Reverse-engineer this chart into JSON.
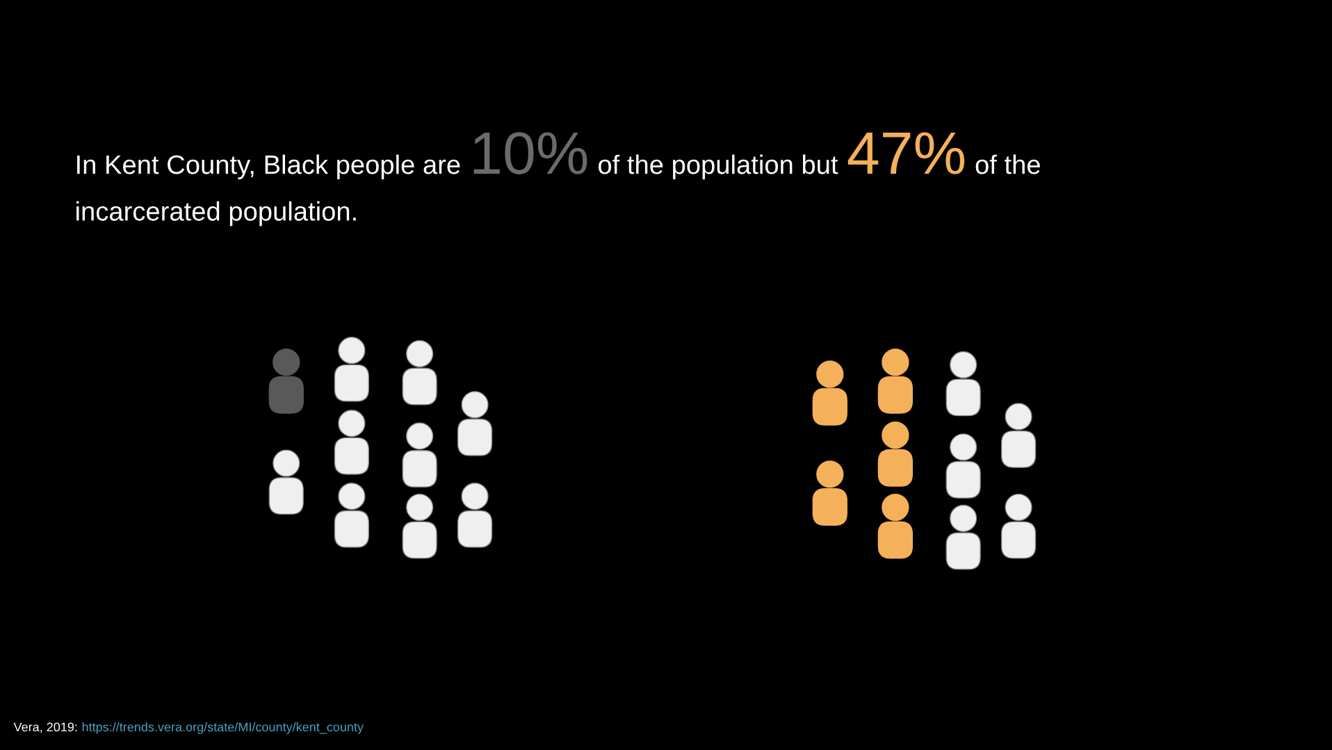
{
  "chart_data": {
    "type": "other",
    "values": [
      10,
      47
    ],
    "value_labels": [
      "10%",
      "47%"
    ],
    "colors": [
      "#6b6b6b",
      "#f5b05a"
    ],
    "annotations": [
      "In Kent County, Black people are",
      "of the population but",
      "of the",
      "incarcerated population.",
      "Vera, 2019:",
      "https://trends.vera.org/state/MI/county/kent_county"
    ]
  }
}
